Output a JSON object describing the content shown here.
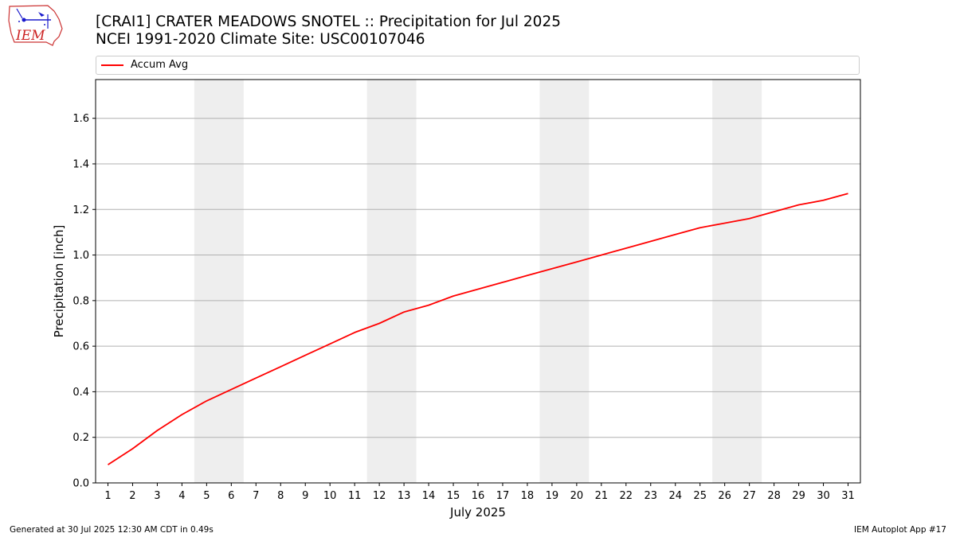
{
  "header": {
    "title_line1": "[CRAI1] CRATER MEADOWS SNOTEL :: Precipitation for Jul 2025",
    "title_line2": "NCEI 1991-2020 Climate Site: USC00107046"
  },
  "logo": {
    "text": "IEM"
  },
  "footer": {
    "left": "Generated at 30 Jul 2025 12:30 AM CDT in 0.49s",
    "right": "IEM Autoplot App #17"
  },
  "chart_data": {
    "type": "line",
    "title": "[CRAI1] CRATER MEADOWS SNOTEL :: Precipitation for Jul 2025",
    "subtitle": "NCEI 1991-2020 Climate Site: USC00107046",
    "xlabel": "July 2025",
    "ylabel": "Precipitation [inch]",
    "xlim": [
      0.5,
      31.5
    ],
    "ylim": [
      0,
      1.77
    ],
    "x_ticks": [
      1,
      2,
      3,
      4,
      5,
      6,
      7,
      8,
      9,
      10,
      11,
      12,
      13,
      14,
      15,
      16,
      17,
      18,
      19,
      20,
      21,
      22,
      23,
      24,
      25,
      26,
      27,
      28,
      29,
      30,
      31
    ],
    "y_ticks": [
      0.0,
      0.2,
      0.4,
      0.6,
      0.8,
      1.0,
      1.2,
      1.4,
      1.6
    ],
    "y_tick_labels": [
      "0.0",
      "0.2",
      "0.4",
      "0.6",
      "0.8",
      "1.0",
      "1.2",
      "1.4",
      "1.6"
    ],
    "grid": "horizontal",
    "legend_placement": "top",
    "weekend_bands": [
      [
        5,
        6
      ],
      [
        12,
        13
      ],
      [
        19,
        20
      ],
      [
        26,
        27
      ]
    ],
    "band_color": "#eeeeee",
    "series": [
      {
        "name": "Accum Avg",
        "color": "#ff0000",
        "x": [
          1,
          2,
          3,
          4,
          5,
          6,
          7,
          8,
          9,
          10,
          11,
          12,
          13,
          14,
          15,
          16,
          17,
          18,
          19,
          20,
          21,
          22,
          23,
          24,
          25,
          26,
          27,
          28,
          29,
          30,
          31
        ],
        "values": [
          0.08,
          0.15,
          0.23,
          0.3,
          0.36,
          0.41,
          0.46,
          0.51,
          0.56,
          0.61,
          0.66,
          0.7,
          0.75,
          0.78,
          0.82,
          0.85,
          0.88,
          0.91,
          0.94,
          0.97,
          1.0,
          1.03,
          1.06,
          1.09,
          1.12,
          1.14,
          1.16,
          1.19,
          1.22,
          1.24,
          1.27
        ]
      }
    ]
  }
}
